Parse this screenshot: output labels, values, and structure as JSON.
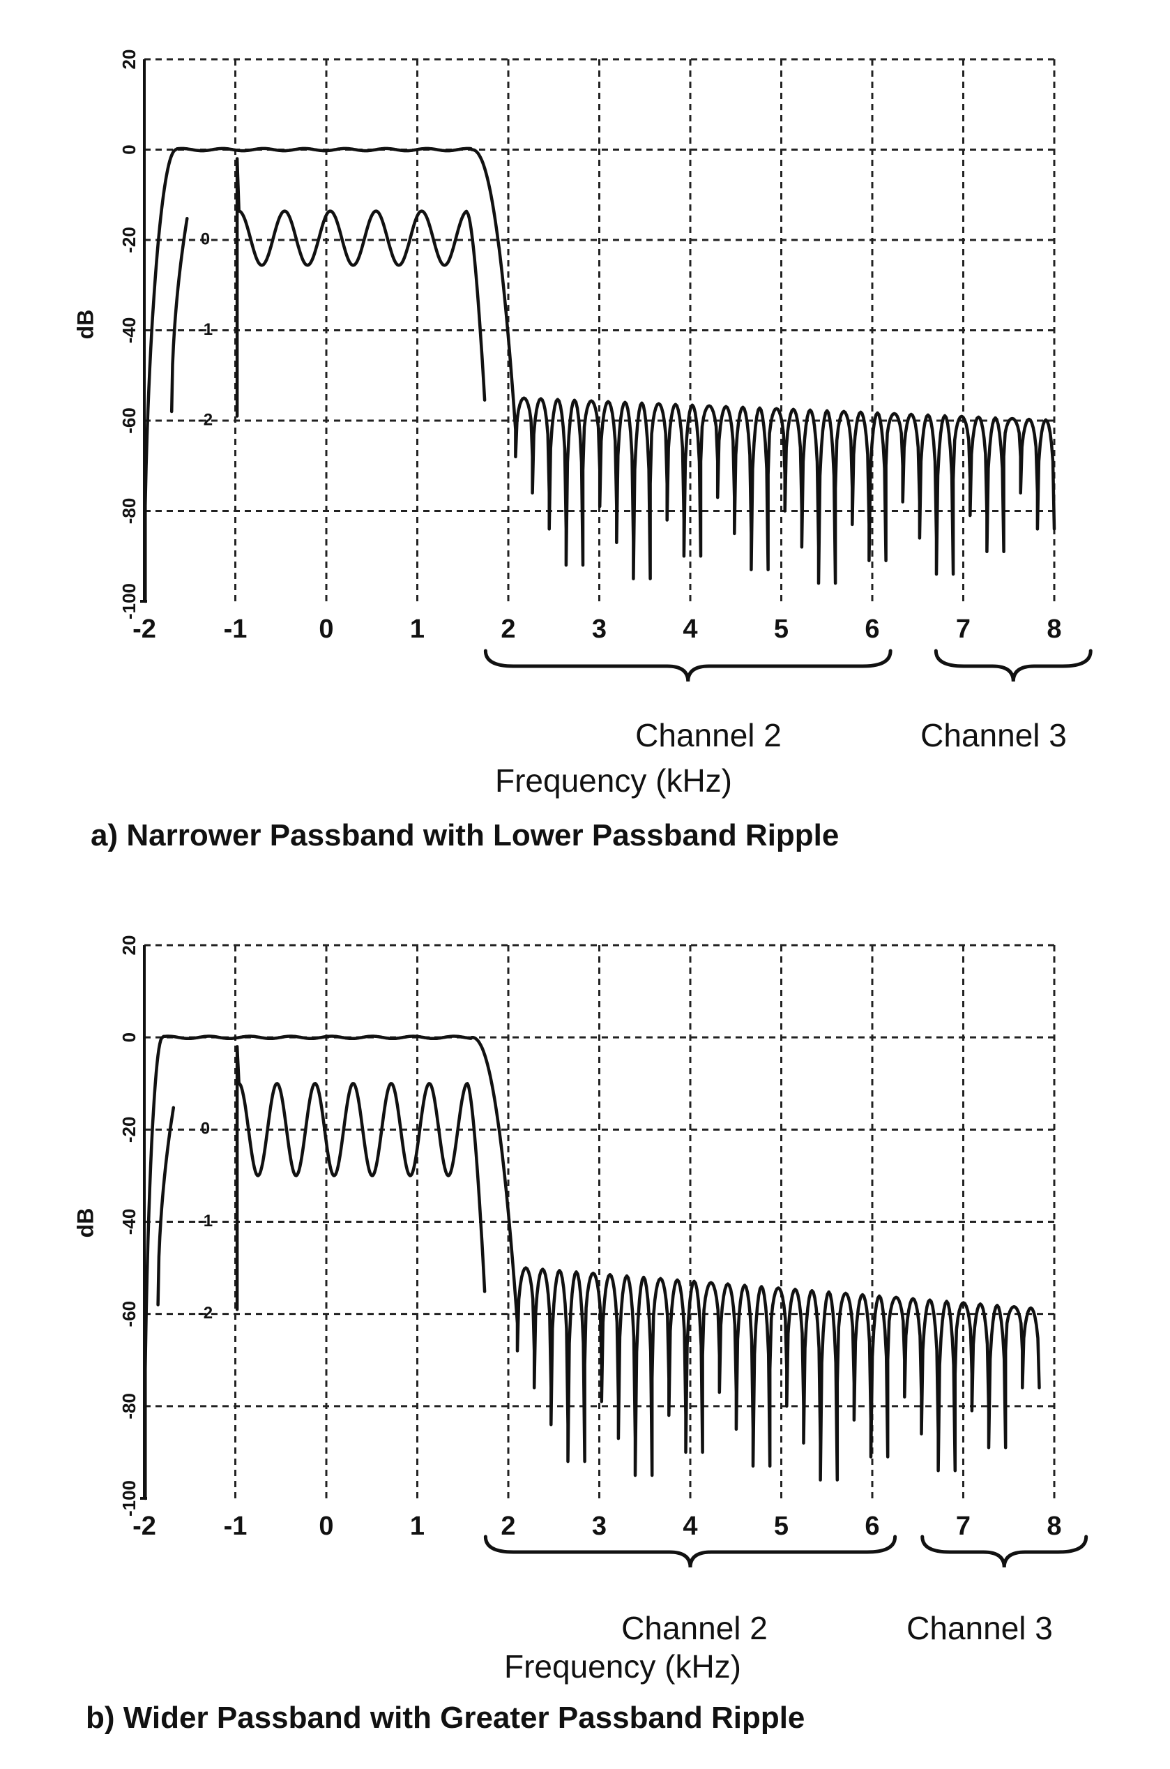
{
  "chart_data": [
    {
      "type": "line",
      "title": "a) Narrower Passband with Lower Passband Ripple",
      "xlabel": "Frequency (kHz)",
      "ylabel": "dB",
      "xlim": [
        -2,
        8
      ],
      "ylim": [
        -100,
        20
      ],
      "x_ticks": [
        "-2",
        "-1",
        "0",
        "1",
        "2",
        "3",
        "4",
        "5",
        "6",
        "7",
        "8"
      ],
      "y_ticks": [
        {
          "value": 20,
          "label": "20"
        },
        {
          "value": 0,
          "label": "0"
        },
        {
          "value": -20,
          "label": "-20"
        },
        {
          "value": -40,
          "label": "-40"
        },
        {
          "value": -60,
          "label": "-60"
        },
        {
          "value": -80,
          "label": "-80"
        },
        {
          "value": -100,
          "label": "-100"
        }
      ],
      "inner_scale_ticks": [
        {
          "y_position_db": -20,
          "label": "0"
        },
        {
          "y_position_db": -40,
          "label": "-1"
        },
        {
          "y_position_db": -60,
          "label": "-2"
        }
      ],
      "grid": true,
      "channel_labels": [
        {
          "label": "Channel 2",
          "from": 1.75,
          "to": 6.2
        },
        {
          "label": "Channel 3",
          "from": 6.7,
          "to": 8.4
        }
      ],
      "series": [
        {
          "kind": "magnitude",
          "passband_edge": [
            -1.7,
            1.6
          ],
          "stopband_start": 2.08,
          "stopband_level_start": -55,
          "stopband_level_end": -60,
          "lobe_spacing": 0.185,
          "points": [
            [
              -2,
              -100
            ],
            [
              -1.9,
              -10
            ],
            [
              -1.6,
              0
            ],
            [
              0,
              0
            ],
            [
              1.6,
              0
            ],
            [
              1.8,
              -10
            ],
            [
              1.95,
              -25
            ],
            [
              2.08,
              -62
            ],
            [
              2.6,
              -55
            ],
            [
              4,
              -56
            ],
            [
              6,
              -58
            ],
            [
              8,
              -60
            ]
          ]
        },
        {
          "kind": "passband-ripple (inner scale)",
          "ripple_cycles": 5,
          "ripple_range": [
            -0.3,
            0.3
          ],
          "points": [
            [
              -1.7,
              -1.9
            ],
            [
              -1.55,
              0.5
            ],
            [
              -1.0,
              0.5
            ],
            [
              -0.45,
              0.3
            ],
            [
              0,
              -0.3
            ],
            [
              0.45,
              0.3
            ],
            [
              1.0,
              0.3
            ],
            [
              1.5,
              0.3
            ],
            [
              1.75,
              -1.9
            ]
          ]
        }
      ]
    },
    {
      "type": "line",
      "title": "b) Wider Passband with Greater Passband Ripple",
      "xlabel": "Frequency (kHz)",
      "ylabel": "dB",
      "xlim": [
        -2,
        8
      ],
      "ylim": [
        -100,
        20
      ],
      "x_ticks": [
        "-2",
        "-1",
        "0",
        "1",
        "2",
        "3",
        "4",
        "5",
        "6",
        "7",
        "8"
      ],
      "y_ticks": [
        {
          "value": 20,
          "label": "20"
        },
        {
          "value": 0,
          "label": "0"
        },
        {
          "value": -20,
          "label": "-20"
        },
        {
          "value": -40,
          "label": "-40"
        },
        {
          "value": -60,
          "label": "-60"
        },
        {
          "value": -80,
          "label": "-80"
        },
        {
          "value": -100,
          "label": "-100"
        }
      ],
      "inner_scale_ticks": [
        {
          "y_position_db": -20,
          "label": "0"
        },
        {
          "y_position_db": -40,
          "label": "-1"
        },
        {
          "y_position_db": -60,
          "label": "-2"
        }
      ],
      "grid": true,
      "channel_labels": [
        {
          "label": "Channel 2",
          "from": 1.75,
          "to": 6.25
        },
        {
          "label": "Channel 3",
          "from": 6.55,
          "to": 8.35
        }
      ],
      "series": [
        {
          "kind": "magnitude",
          "passband_edge": [
            -1.85,
            1.6
          ],
          "stopband_start": 2.1,
          "stopband_level_start": -50,
          "stopband_level_end": -59,
          "lobe_spacing": 0.185,
          "points": [
            [
              -2,
              -50
            ],
            [
              -1.9,
              -10
            ],
            [
              -1.7,
              0
            ],
            [
              0,
              0
            ],
            [
              1.6,
              0
            ],
            [
              1.8,
              -10
            ],
            [
              1.97,
              -30
            ],
            [
              2.1,
              -58
            ],
            [
              2.6,
              -50
            ],
            [
              4,
              -53
            ],
            [
              6,
              -56
            ],
            [
              8,
              -59
            ]
          ]
        },
        {
          "kind": "passband-ripple (inner scale)",
          "ripple_cycles": 6,
          "ripple_range": [
            -0.5,
            0.5
          ],
          "points": [
            [
              -1.85,
              -1.95
            ],
            [
              -1.65,
              0.5
            ],
            [
              -1.0,
              0.5
            ],
            [
              -0.5,
              0.5
            ],
            [
              0,
              0.2
            ],
            [
              0.5,
              0.5
            ],
            [
              1.0,
              0.5
            ],
            [
              1.5,
              0.5
            ],
            [
              1.75,
              -1.95
            ]
          ]
        }
      ]
    }
  ]
}
